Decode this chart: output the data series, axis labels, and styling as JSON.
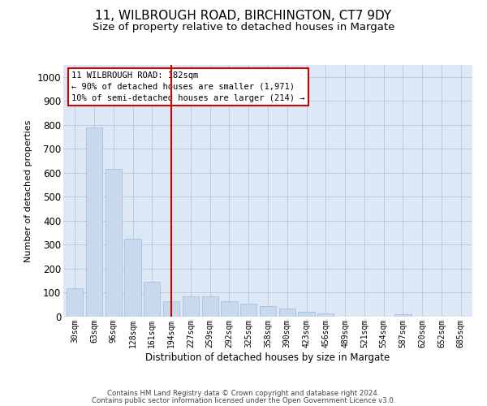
{
  "title1": "11, WILBROUGH ROAD, BIRCHINGTON, CT7 9DY",
  "title2": "Size of property relative to detached houses in Margate",
  "xlabel": "Distribution of detached houses by size in Margate",
  "ylabel": "Number of detached properties",
  "categories": [
    "30sqm",
    "63sqm",
    "96sqm",
    "128sqm",
    "161sqm",
    "194sqm",
    "227sqm",
    "259sqm",
    "292sqm",
    "325sqm",
    "358sqm",
    "390sqm",
    "423sqm",
    "456sqm",
    "489sqm",
    "521sqm",
    "554sqm",
    "587sqm",
    "620sqm",
    "652sqm",
    "685sqm"
  ],
  "values": [
    120,
    790,
    615,
    325,
    145,
    65,
    85,
    85,
    65,
    55,
    45,
    35,
    20,
    15,
    0,
    0,
    0,
    10,
    0,
    0,
    0
  ],
  "bar_color": "#c8d9ee",
  "bar_edge_color": "#a8c0da",
  "annotation_line1": "11 WILBROUGH ROAD: 182sqm",
  "annotation_line2": "← 90% of detached houses are smaller (1,971)",
  "annotation_line3": "10% of semi-detached houses are larger (214) →",
  "annotation_box_color": "#ffffff",
  "annotation_box_edge_color": "#cc0000",
  "vline_color": "#cc0000",
  "vline_x": 5.0,
  "ylim": [
    0,
    1050
  ],
  "yticks": [
    0,
    100,
    200,
    300,
    400,
    500,
    600,
    700,
    800,
    900,
    1000
  ],
  "grid_color": "#b8cce0",
  "bg_color": "#dce8f5",
  "footnote1": "Contains HM Land Registry data © Crown copyright and database right 2024.",
  "footnote2": "Contains public sector information licensed under the Open Government Licence v3.0.",
  "title1_fontsize": 11,
  "title2_fontsize": 9.5
}
